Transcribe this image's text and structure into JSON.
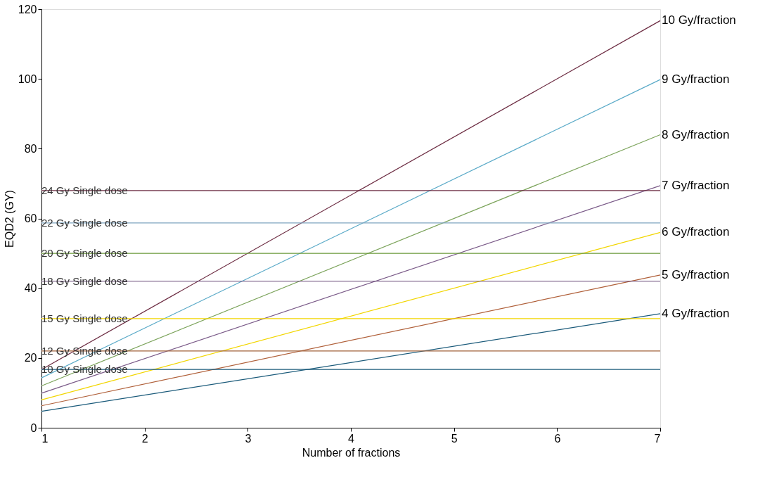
{
  "chart_data": {
    "type": "line",
    "xlabel": "Number of fractions",
    "ylabel": "EQD2 (GY)",
    "xlim": [
      1,
      7
    ],
    "ylim": [
      0,
      120
    ],
    "x": [
      1,
      7
    ],
    "xticks": [
      1,
      2,
      3,
      4,
      5,
      6,
      7
    ],
    "yticks": [
      0,
      20,
      40,
      60,
      80,
      100,
      120
    ],
    "grid": false,
    "legend": false,
    "marker": "none",
    "line_style": "solid",
    "series": [
      {
        "name": "10 Gy/fraction",
        "color": "#6b2a40",
        "values": [
          16.7,
          116.7
        ]
      },
      {
        "name": "9 Gy/fraction",
        "color": "#5aaac8",
        "values": [
          14.3,
          99.8
        ]
      },
      {
        "name": "8 Gy/fraction",
        "color": "#7ba35a",
        "values": [
          12,
          84
        ]
      },
      {
        "name": "7 Gy/fraction",
        "color": "#7a5a88",
        "values": [
          9.9,
          69.4
        ]
      },
      {
        "name": "6 Gy/fraction",
        "color": "#f2d600",
        "values": [
          8,
          56
        ]
      },
      {
        "name": "5 Gy/fraction",
        "color": "#b0603a",
        "values": [
          6.3,
          43.8
        ]
      },
      {
        "name": "4 Gy/fraction",
        "color": "#1a5a7a",
        "values": [
          4.7,
          32.7
        ]
      }
    ],
    "ref_lines": [
      {
        "axis": "y",
        "value": 68,
        "label": "24 Gy Single dose",
        "color": "#6b2a40"
      },
      {
        "axis": "y",
        "value": 58.7,
        "label": "22 Gy Single dose",
        "color": "#7fa5c0"
      },
      {
        "axis": "y",
        "value": 50,
        "label": "20 Gy Single dose",
        "color": "#6a9a3a"
      },
      {
        "axis": "y",
        "value": 42,
        "label": "18 Gy Single dose",
        "color": "#6a4a78"
      },
      {
        "axis": "y",
        "value": 31.3,
        "label": "15 Gy Single dose",
        "color": "#f2d600"
      },
      {
        "axis": "y",
        "value": 22,
        "label": "12 Gy Single dose",
        "color": "#a0603a"
      },
      {
        "axis": "y",
        "value": 16.7,
        "label": "10 Gy Single dose",
        "color": "#1a5a7a"
      }
    ]
  }
}
